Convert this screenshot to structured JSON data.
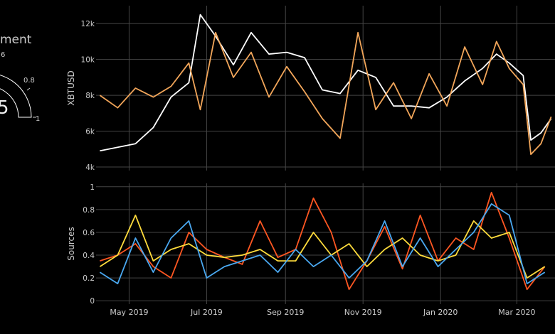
{
  "gauge": {
    "title": "ment",
    "value_text": "5",
    "tick_labels": [
      "6",
      "0.8",
      "1"
    ],
    "bar_color": "#ffffff",
    "track_color": "#000000",
    "outline_color": "#ffffff"
  },
  "chart_data": [
    {
      "type": "line",
      "ylabel": "XBTUSD",
      "yticks": [
        4000,
        6000,
        8000,
        10000,
        12000
      ],
      "ytick_labels": [
        "4k",
        "6k",
        "8k",
        "10k",
        "12k"
      ],
      "ylim": [
        3800,
        13000
      ],
      "grid": true,
      "x": [
        "2019-04-08",
        "2019-04-22",
        "2019-05-06",
        "2019-05-20",
        "2019-06-03",
        "2019-06-17",
        "2019-06-26",
        "2019-07-08",
        "2019-07-22",
        "2019-08-05",
        "2019-08-19",
        "2019-09-02",
        "2019-09-16",
        "2019-09-30",
        "2019-10-14",
        "2019-10-28",
        "2019-11-11",
        "2019-11-25",
        "2019-12-09",
        "2019-12-23",
        "2020-01-06",
        "2020-01-20",
        "2020-02-03",
        "2020-02-14",
        "2020-02-24",
        "2020-03-06",
        "2020-03-12",
        "2020-03-20",
        "2020-03-28"
      ],
      "series": [
        {
          "color": "#ffffff",
          "values": [
            4900,
            5100,
            5300,
            6200,
            7900,
            8700,
            12500,
            11300,
            9700,
            11500,
            10300,
            10400,
            10100,
            8300,
            8100,
            9400,
            9000,
            7400,
            7400,
            7300,
            7900,
            8800,
            9500,
            10300,
            9800,
            9100,
            5500,
            5900,
            6700
          ]
        },
        {
          "color": "#f2a65a",
          "values": [
            8000,
            7300,
            8400,
            7900,
            8500,
            9800,
            7200,
            11500,
            9000,
            10400,
            7900,
            9600,
            8200,
            6700,
            5600,
            11500,
            7200,
            8700,
            6700,
            9200,
            7400,
            10700,
            8600,
            11000,
            9500,
            8600,
            4700,
            5300,
            6800
          ]
        }
      ]
    },
    {
      "type": "line",
      "ylabel": "Sources",
      "yticks": [
        0,
        0.2,
        0.4,
        0.6,
        0.8,
        1
      ],
      "ytick_labels": [
        "0",
        "0.2",
        "0.4",
        "0.6",
        "0.8",
        "1"
      ],
      "ylim": [
        -0.03,
        1.03
      ],
      "grid": true,
      "x": [
        "2019-04-08",
        "2019-04-22",
        "2019-05-06",
        "2019-05-20",
        "2019-06-03",
        "2019-06-17",
        "2019-07-01",
        "2019-07-15",
        "2019-07-29",
        "2019-08-12",
        "2019-08-26",
        "2019-09-09",
        "2019-09-23",
        "2019-10-07",
        "2019-10-21",
        "2019-11-04",
        "2019-11-18",
        "2019-12-02",
        "2019-12-16",
        "2019-12-30",
        "2020-01-13",
        "2020-01-27",
        "2020-02-10",
        "2020-02-24",
        "2020-03-09",
        "2020-03-23"
      ],
      "series": [
        {
          "color": "#ff5722",
          "values": [
            0.35,
            0.4,
            0.5,
            0.3,
            0.2,
            0.6,
            0.45,
            0.38,
            0.32,
            0.7,
            0.38,
            0.45,
            0.9,
            0.6,
            0.1,
            0.35,
            0.65,
            0.28,
            0.75,
            0.35,
            0.55,
            0.45,
            0.95,
            0.55,
            0.1,
            0.3
          ]
        },
        {
          "color": "#ffdc3c",
          "values": [
            0.3,
            0.4,
            0.75,
            0.35,
            0.45,
            0.5,
            0.4,
            0.38,
            0.4,
            0.45,
            0.35,
            0.35,
            0.6,
            0.4,
            0.5,
            0.3,
            0.45,
            0.55,
            0.4,
            0.35,
            0.4,
            0.7,
            0.55,
            0.6,
            0.2,
            0.3
          ]
        },
        {
          "color": "#4aa8f0",
          "values": [
            0.25,
            0.15,
            0.55,
            0.25,
            0.55,
            0.7,
            0.2,
            0.3,
            0.35,
            0.4,
            0.25,
            0.45,
            0.3,
            0.4,
            0.2,
            0.35,
            0.7,
            0.3,
            0.55,
            0.3,
            0.45,
            0.6,
            0.85,
            0.75,
            0.15,
            0.25
          ]
        }
      ]
    }
  ],
  "xaxis": {
    "tick_dates": [
      "2019-05-01",
      "2019-07-01",
      "2019-09-01",
      "2019-11-01",
      "2020-01-01",
      "2020-03-01"
    ],
    "tick_labels": [
      "May 2019",
      "Jul 2019",
      "Sep 2019",
      "Nov 2019",
      "Jan 2020",
      "Mar 2020"
    ]
  }
}
